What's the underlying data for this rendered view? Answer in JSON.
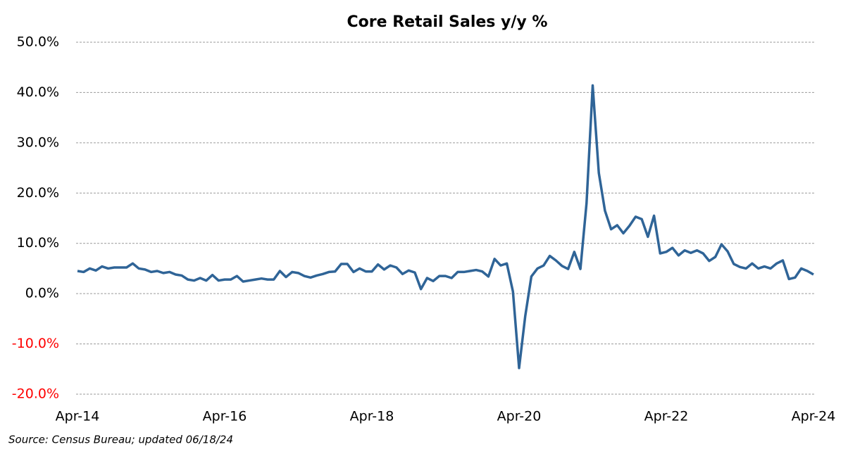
{
  "chart_data": {
    "type": "line",
    "title": "Core Retail Sales y/y %",
    "source": "Source:  Census Bureau;  updated  06/18/24",
    "categories": [
      "Apr-14",
      null,
      null,
      null,
      null,
      null,
      null,
      null,
      null,
      null,
      null,
      null,
      null,
      null,
      null,
      null,
      null,
      null,
      null,
      null,
      null,
      null,
      null,
      null,
      "Apr-16",
      null,
      null,
      null,
      null,
      null,
      null,
      null,
      null,
      null,
      null,
      null,
      null,
      null,
      null,
      null,
      null,
      null,
      null,
      null,
      null,
      null,
      null,
      null,
      "Apr-18",
      null,
      null,
      null,
      null,
      null,
      null,
      null,
      null,
      null,
      null,
      null,
      null,
      null,
      null,
      null,
      null,
      null,
      null,
      null,
      null,
      null,
      null,
      null,
      "Apr-20",
      null,
      null,
      null,
      null,
      null,
      null,
      null,
      null,
      null,
      null,
      null,
      null,
      null,
      null,
      null,
      null,
      null,
      null,
      null,
      null,
      null,
      null,
      null,
      "Apr-22",
      null,
      null,
      null,
      null,
      null,
      null,
      null,
      null,
      null,
      null,
      null,
      null,
      null,
      null,
      null,
      null,
      null,
      null,
      null,
      null,
      null,
      null,
      null,
      "Apr-24"
    ],
    "values": [
      4.5,
      4.3,
      5.0,
      4.6,
      5.4,
      5.0,
      5.2,
      5.2,
      5.2,
      6.0,
      5.0,
      4.8,
      4.3,
      4.5,
      4.1,
      4.3,
      3.8,
      3.6,
      2.8,
      2.6,
      3.1,
      2.6,
      3.7,
      2.6,
      2.8,
      2.8,
      3.5,
      2.4,
      2.6,
      2.8,
      3.0,
      2.8,
      2.8,
      4.5,
      3.3,
      4.3,
      4.1,
      3.5,
      3.2,
      3.6,
      3.9,
      4.3,
      4.4,
      5.9,
      5.9,
      4.3,
      5.0,
      4.4,
      4.4,
      5.8,
      4.8,
      5.6,
      5.2,
      3.9,
      4.6,
      4.2,
      0.9,
      3.1,
      2.5,
      3.5,
      3.5,
      3.1,
      4.3,
      4.3,
      4.5,
      4.7,
      4.4,
      3.4,
      6.9,
      5.6,
      6.0,
      0.4,
      -14.8,
      -4.5,
      3.4,
      5.0,
      5.6,
      7.5,
      6.6,
      5.5,
      4.9,
      8.3,
      4.9,
      18.0,
      41.4,
      24.0,
      16.5,
      12.8,
      13.6,
      12.0,
      13.5,
      15.3,
      14.8,
      11.3,
      15.5,
      8.0,
      8.3,
      9.1,
      7.6,
      8.6,
      8.1,
      8.6,
      8.0,
      6.5,
      7.3,
      9.8,
      8.4,
      5.9,
      5.3,
      5.0,
      6.0,
      5.0,
      5.4,
      5.0,
      6.0,
      6.6,
      2.9,
      3.2,
      5.0,
      4.5,
      3.8
    ],
    "color": "#2f6497",
    "ylim": [
      -20,
      50
    ],
    "yticks": [
      {
        "value": -20,
        "label": "-20.0%"
      },
      {
        "value": -10,
        "label": "-10.0%"
      },
      {
        "value": 0,
        "label": "0.0%"
      },
      {
        "value": 10,
        "label": "10.0%"
      },
      {
        "value": 20,
        "label": "20.0%"
      },
      {
        "value": 30,
        "label": "30.0%"
      },
      {
        "value": 40,
        "label": "40.0%"
      },
      {
        "value": 50,
        "label": "50.0%"
      }
    ],
    "negative_tick_color": "#ff0000",
    "grid": true
  }
}
